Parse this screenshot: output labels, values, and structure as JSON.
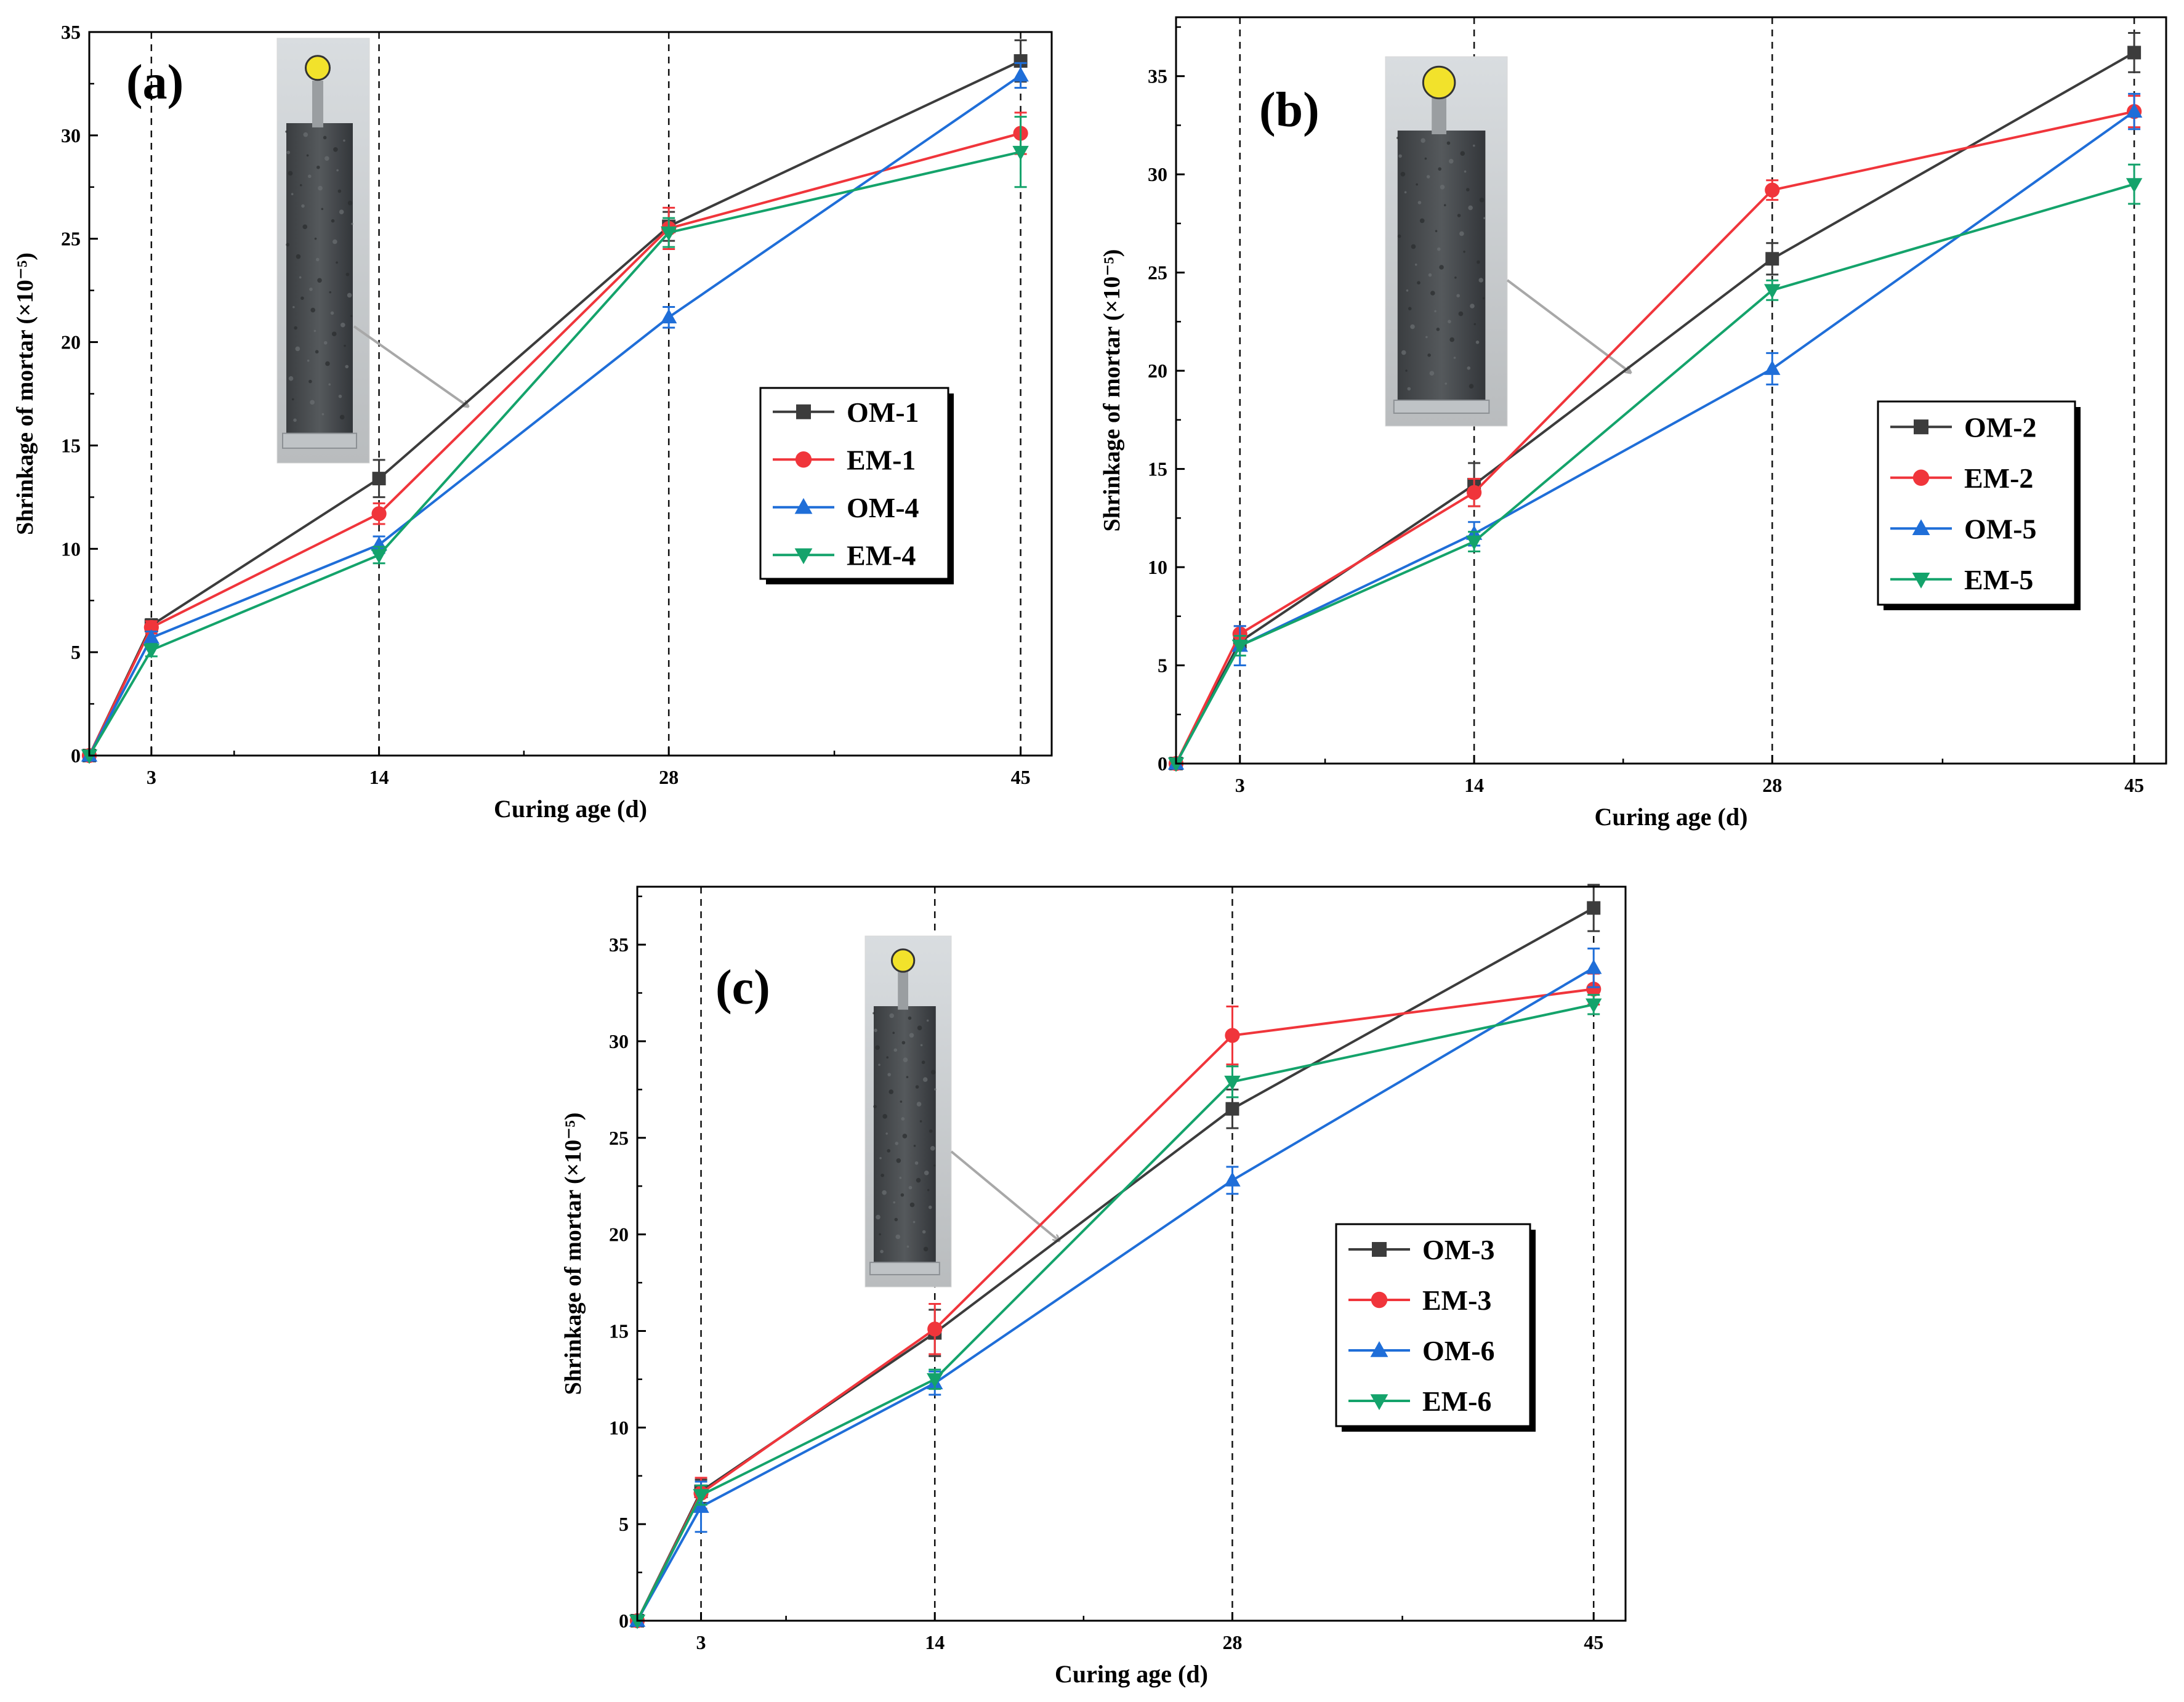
{
  "chart_data": [
    {
      "panel": "(a)",
      "type": "line",
      "x": [
        0,
        3,
        14,
        28,
        45
      ],
      "x_ticks": [
        3,
        14,
        28,
        45
      ],
      "xlim": [
        0,
        46.5
      ],
      "ylim": [
        0,
        35
      ],
      "y_ticks": [
        0,
        5,
        10,
        15,
        20,
        25,
        30,
        35
      ],
      "xlabel": "Curing age (d)",
      "ylabel": "Shrinkage of mortar (×10⁻⁵)",
      "legend": "center-right",
      "grid": "dashed vertical lines at x ticks",
      "series": [
        {
          "name": "OM-1",
          "color": "#3c3c3c",
          "marker": "square",
          "values": [
            0,
            6.3,
            13.4,
            25.6,
            33.6
          ],
          "errors": [
            0,
            0.3,
            0.9,
            0.7,
            1.0
          ]
        },
        {
          "name": "EM-1",
          "color": "#f0353b",
          "marker": "circle",
          "values": [
            0,
            6.2,
            11.7,
            25.5,
            30.1
          ],
          "errors": [
            0,
            0.3,
            0.5,
            1.0,
            1.0
          ]
        },
        {
          "name": "OM-4",
          "color": "#1f6ed8",
          "marker": "triangle-up",
          "values": [
            0,
            5.7,
            10.2,
            21.2,
            32.9
          ],
          "errors": [
            0,
            0.3,
            0.4,
            0.5,
            0.6
          ]
        },
        {
          "name": "EM-4",
          "color": "#14a36b",
          "marker": "triangle-down",
          "values": [
            0,
            5.1,
            9.7,
            25.3,
            29.2
          ],
          "errors": [
            0,
            0.3,
            0.4,
            0.7,
            1.7
          ]
        }
      ]
    },
    {
      "panel": "(b)",
      "type": "line",
      "x": [
        0,
        3,
        14,
        28,
        45
      ],
      "x_ticks": [
        3,
        14,
        28,
        45
      ],
      "xlim": [
        0,
        46.5
      ],
      "ylim": [
        0,
        38
      ],
      "y_ticks": [
        0,
        5,
        10,
        15,
        20,
        25,
        30,
        35
      ],
      "xlabel": "Curing age (d)",
      "ylabel": "Shrinkage of mortar (×10⁻⁵)",
      "legend": "center-right",
      "grid": "dashed vertical lines at x ticks",
      "series": [
        {
          "name": "OM-2",
          "color": "#3c3c3c",
          "marker": "square",
          "values": [
            0,
            6.2,
            14.2,
            25.7,
            36.2
          ],
          "errors": [
            0,
            0.4,
            1.1,
            0.8,
            1.0
          ]
        },
        {
          "name": "EM-2",
          "color": "#f0353b",
          "marker": "circle",
          "values": [
            0,
            6.6,
            13.8,
            29.2,
            33.2
          ],
          "errors": [
            0,
            0.4,
            0.7,
            0.5,
            0.8
          ]
        },
        {
          "name": "OM-5",
          "color": "#1f6ed8",
          "marker": "triangle-up",
          "values": [
            0,
            6.0,
            11.7,
            20.1,
            33.2
          ],
          "errors": [
            0,
            1.0,
            0.6,
            0.8,
            0.9
          ]
        },
        {
          "name": "EM-5",
          "color": "#14a36b",
          "marker": "triangle-down",
          "values": [
            0,
            6.0,
            11.3,
            24.1,
            29.5
          ],
          "errors": [
            0,
            0.5,
            0.5,
            0.5,
            1.0
          ]
        }
      ]
    },
    {
      "panel": "(c)",
      "type": "line",
      "x": [
        0,
        3,
        14,
        28,
        45
      ],
      "x_ticks": [
        3,
        14,
        28,
        45
      ],
      "xlim": [
        0,
        46.5
      ],
      "ylim": [
        0,
        38
      ],
      "y_ticks": [
        0,
        5,
        10,
        15,
        20,
        25,
        30,
        35
      ],
      "xlabel": "Curing age (d)",
      "ylabel": "Shrinkage of mortar (×10⁻⁵)",
      "legend": "center-right",
      "grid": "dashed vertical lines at x ticks",
      "series": [
        {
          "name": "OM-3",
          "color": "#3c3c3c",
          "marker": "square",
          "values": [
            0,
            6.7,
            14.9,
            26.5,
            36.9
          ],
          "errors": [
            0,
            0.6,
            1.2,
            1.0,
            1.2
          ]
        },
        {
          "name": "EM-3",
          "color": "#f0353b",
          "marker": "circle",
          "values": [
            0,
            6.6,
            15.1,
            30.3,
            32.7
          ],
          "errors": [
            0,
            0.8,
            1.3,
            1.5,
            0.8
          ]
        },
        {
          "name": "OM-6",
          "color": "#1f6ed8",
          "marker": "triangle-up",
          "values": [
            0,
            5.9,
            12.3,
            22.8,
            33.8
          ],
          "errors": [
            0,
            1.3,
            0.6,
            0.7,
            1.0
          ]
        },
        {
          "name": "EM-6",
          "color": "#14a36b",
          "marker": "triangle-down",
          "values": [
            0,
            6.5,
            12.5,
            27.9,
            31.9
          ],
          "errors": [
            0,
            0.5,
            0.5,
            0.8,
            0.5
          ]
        }
      ]
    }
  ]
}
